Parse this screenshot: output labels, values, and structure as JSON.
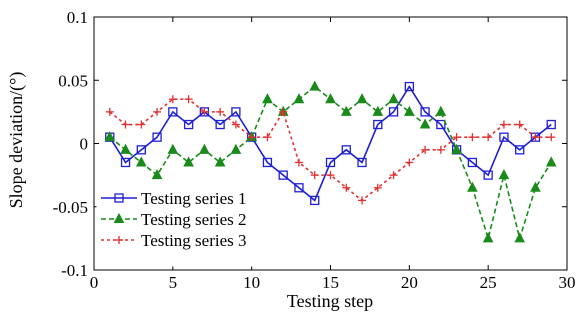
{
  "chart_data": {
    "type": "line",
    "xlabel": "Testing step",
    "ylabel": "Slope deviation/(°)",
    "xlim": [
      0,
      30
    ],
    "ylim": [
      -0.1,
      0.1
    ],
    "xticks": [
      0,
      5,
      10,
      15,
      20,
      25,
      30
    ],
    "xtick_labels": [
      "0",
      "5",
      "10",
      "15",
      "20",
      "25",
      "30"
    ],
    "yticks": [
      -0.1,
      -0.05,
      0,
      0.05,
      0.1
    ],
    "ytick_labels": [
      "-0.1",
      "-0.05",
      "0",
      "0.05",
      "0.1"
    ],
    "grid": false,
    "legend_position": "bottom-left",
    "x": [
      1,
      2,
      3,
      4,
      5,
      6,
      7,
      8,
      9,
      10,
      11,
      12,
      13,
      14,
      15,
      16,
      17,
      18,
      19,
      20,
      21,
      22,
      23,
      24,
      25,
      26,
      27,
      28,
      29
    ],
    "series": [
      {
        "name": "Testing series 1",
        "color": "#1f1fd6",
        "line_style": "solid",
        "marker": "square",
        "values": [
          0.005,
          -0.015,
          -0.005,
          0.005,
          0.025,
          0.015,
          0.025,
          0.015,
          0.025,
          0.005,
          -0.015,
          -0.025,
          -0.035,
          -0.045,
          -0.015,
          -0.005,
          -0.015,
          0.015,
          0.025,
          0.045,
          0.025,
          0.015,
          -0.005,
          -0.015,
          -0.025,
          0.005,
          -0.005,
          0.005,
          0.015
        ]
      },
      {
        "name": "Testing series 2",
        "color": "#1a8a1a",
        "line_style": "dashed",
        "marker": "triangle",
        "values": [
          0.005,
          -0.005,
          -0.015,
          -0.025,
          -0.005,
          -0.015,
          -0.005,
          -0.015,
          -0.005,
          0.005,
          0.035,
          0.025,
          0.035,
          0.045,
          0.035,
          0.025,
          0.035,
          0.025,
          0.035,
          0.025,
          0.015,
          0.025,
          -0.005,
          -0.035,
          -0.075,
          -0.025,
          -0.075,
          -0.035,
          -0.015
        ]
      },
      {
        "name": "Testing series 3",
        "color": "#e03030",
        "line_style": "dotted",
        "marker": "plus",
        "values": [
          0.025,
          0.015,
          0.015,
          0.025,
          0.035,
          0.035,
          0.025,
          0.025,
          0.015,
          0.005,
          0.005,
          0.025,
          -0.015,
          -0.025,
          -0.025,
          -0.035,
          -0.045,
          -0.035,
          -0.025,
          -0.015,
          -0.005,
          -0.005,
          0.005,
          0.005,
          0.005,
          0.015,
          0.015,
          0.005,
          0.005
        ]
      }
    ]
  }
}
